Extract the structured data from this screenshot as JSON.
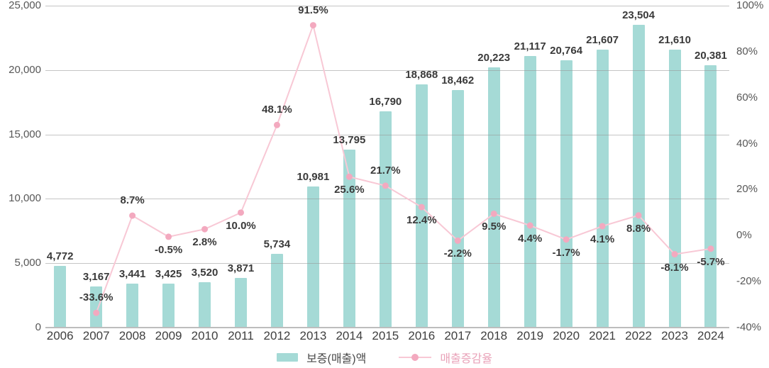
{
  "chart_data": {
    "type": "bar",
    "subtype": "combo-bar-line-dual-axis",
    "title": "",
    "categories": [
      "2006",
      "2007",
      "2008",
      "2009",
      "2010",
      "2011",
      "2012",
      "2013",
      "2014",
      "2015",
      "2016",
      "2017",
      "2018",
      "2019",
      "2020",
      "2021",
      "2022",
      "2023",
      "2024"
    ],
    "series": [
      {
        "name": "보증(매출)액",
        "type": "bar",
        "axis": "left",
        "color": "#a5dad6",
        "values": [
          4772,
          3167,
          3441,
          3425,
          3520,
          3871,
          5734,
          10981,
          13795,
          16790,
          18868,
          18462,
          20223,
          21117,
          20764,
          21607,
          23504,
          21610,
          20381
        ],
        "labels": [
          "4,772",
          "3,167",
          "3,441",
          "3,425",
          "3,520",
          "3,871",
          "5,734",
          "10,981",
          "13,795",
          "16,790",
          "18,868",
          "18,462",
          "20,223",
          "21,117",
          "20,764",
          "21,607",
          "23,504",
          "21,610",
          "20,381"
        ]
      },
      {
        "name": "매출증감율",
        "type": "line",
        "axis": "right",
        "color": "#f8c8d5",
        "marker_color": "#f3a9bf",
        "values": [
          null,
          -33.6,
          8.7,
          -0.5,
          2.8,
          10.0,
          48.1,
          91.5,
          25.6,
          21.7,
          12.4,
          -2.2,
          9.5,
          4.4,
          -1.7,
          4.1,
          8.8,
          -8.1,
          -5.7
        ],
        "labels": [
          null,
          "-33.6%",
          "8.7%",
          "-0.5%",
          "2.8%",
          "10.0%",
          "48.1%",
          "91.5%",
          "25.6%",
          "21.7%",
          "12.4%",
          "-2.2%",
          "9.5%",
          "4.4%",
          "-1.7%",
          "4.1%",
          "8.8%",
          "-8.1%",
          "-5.7%"
        ],
        "label_positions": [
          null,
          "above",
          "above",
          "below",
          "below",
          "below",
          "above",
          "above",
          "below",
          "above",
          "below",
          "below",
          "below",
          "below",
          "below",
          "below",
          "below",
          "below",
          "below"
        ]
      }
    ],
    "left_axis": {
      "min": 0,
      "max": 25000,
      "tick_values": [
        25000,
        20000,
        15000,
        10000,
        5000,
        0
      ],
      "tick_labels": [
        "25,000",
        "20,000",
        "15,000",
        "10,000",
        "5,000",
        "0"
      ]
    },
    "right_axis": {
      "min": -40,
      "max": 100,
      "tick_values": [
        100,
        80,
        60,
        40,
        20,
        0,
        -20,
        -40
      ],
      "tick_labels": [
        "100%",
        "80%",
        "60%",
        "40%",
        "20%",
        "0%",
        "-20%",
        "-40%"
      ]
    },
    "grid": true,
    "legend_position": "bottom"
  },
  "legend": {
    "items": [
      {
        "label": "보증(매출)액",
        "type": "bar"
      },
      {
        "label": "매출증감율",
        "type": "line"
      }
    ]
  },
  "colors": {
    "bar": "#a5dad6",
    "line": "#f8c8d5",
    "marker": "#f3a9bf",
    "grid": "#c9c9c9",
    "axis_text": "#575757",
    "value_text": "#3a3a3a",
    "legend_bar_text": "#4a4a4a",
    "legend_line_text": "#e9a2b8"
  }
}
